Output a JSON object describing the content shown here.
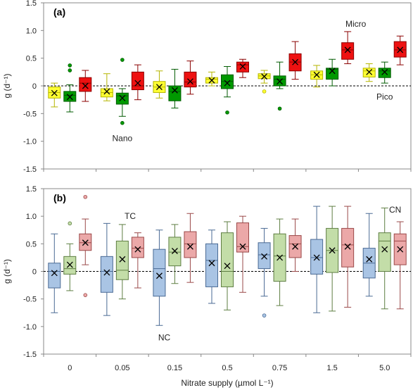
{
  "chart_data": [
    {
      "panel_label": "(a)",
      "type": "box",
      "ylabel": "g (d⁻¹)",
      "ylim": [
        -1.5,
        1.5
      ],
      "yticks": [
        "1.5",
        "1.0",
        "0.5",
        "0",
        "-0.5",
        "-1.0",
        "-1.5"
      ],
      "categories": [
        "0",
        "0.05",
        "0.15",
        "0.5",
        "0.75",
        "1.5",
        "5.0"
      ],
      "zero_line": "dashed",
      "series": [
        {
          "color": "#ffff33",
          "stroke": "#b5b500",
          "boxes": [
            {
              "min": -0.38,
              "q1": -0.22,
              "median": -0.12,
              "q3": -0.02,
              "max": 0.05,
              "mean": -0.13,
              "outliers": []
            },
            {
              "min": -0.27,
              "q1": -0.2,
              "median": -0.12,
              "q3": -0.05,
              "max": 0.22,
              "mean": -0.1,
              "outliers": []
            },
            {
              "min": -0.22,
              "q1": -0.12,
              "median": -0.02,
              "q3": 0.08,
              "max": 0.27,
              "mean": -0.02,
              "outliers": []
            },
            {
              "min": 0.0,
              "q1": 0.05,
              "median": 0.12,
              "q3": 0.15,
              "max": 0.25,
              "mean": 0.1,
              "outliers": []
            },
            {
              "min": 0.05,
              "q1": 0.13,
              "median": 0.18,
              "q3": 0.22,
              "max": 0.28,
              "mean": 0.17,
              "outliers": [
                -0.1
              ]
            },
            {
              "min": -0.02,
              "q1": 0.12,
              "median": 0.2,
              "q3": 0.27,
              "max": 0.37,
              "mean": 0.2,
              "outliers": []
            },
            {
              "min": 0.08,
              "q1": 0.16,
              "median": 0.27,
              "q3": 0.32,
              "max": 0.4,
              "mean": 0.25,
              "outliers": []
            }
          ]
        },
        {
          "color": "#009900",
          "stroke": "#005a00",
          "boxes": [
            {
              "min": -0.47,
              "q1": -0.28,
              "median": -0.17,
              "q3": -0.1,
              "max": 0.02,
              "mean": -0.2,
              "outliers": [
                0.37,
                0.28
              ]
            },
            {
              "min": -0.55,
              "q1": -0.33,
              "median": -0.18,
              "q3": -0.13,
              "max": -0.05,
              "mean": -0.22,
              "outliers": [
                0.47,
                -0.67
              ]
            },
            {
              "min": -0.4,
              "q1": -0.27,
              "median": -0.1,
              "q3": 0.0,
              "max": 0.3,
              "mean": -0.08,
              "outliers": []
            },
            {
              "min": -0.2,
              "q1": -0.05,
              "median": 0.08,
              "q3": 0.2,
              "max": 0.35,
              "mean": 0.05,
              "outliers": [
                -0.48
              ]
            },
            {
              "min": -0.05,
              "q1": 0.0,
              "median": 0.12,
              "q3": 0.18,
              "max": 0.43,
              "mean": 0.08,
              "outliers": [
                -0.41
              ]
            },
            {
              "min": 0.0,
              "q1": 0.12,
              "median": 0.3,
              "q3": 0.32,
              "max": 0.48,
              "mean": 0.27,
              "outliers": []
            },
            {
              "min": 0.05,
              "q1": 0.15,
              "median": 0.27,
              "q3": 0.32,
              "max": 0.43,
              "mean": 0.25,
              "outliers": []
            }
          ]
        },
        {
          "color": "#ee1111",
          "stroke": "#8a0000",
          "boxes": [
            {
              "min": -0.28,
              "q1": -0.1,
              "median": 0.05,
              "q3": 0.15,
              "max": 0.28,
              "mean": 0.0,
              "outliers": []
            },
            {
              "min": -0.25,
              "q1": -0.07,
              "median": 0.0,
              "q3": 0.25,
              "max": 0.38,
              "mean": 0.05,
              "outliers": []
            },
            {
              "min": -0.15,
              "q1": -0.02,
              "median": 0.07,
              "q3": 0.25,
              "max": 0.45,
              "mean": 0.08,
              "outliers": []
            },
            {
              "min": 0.15,
              "q1": 0.25,
              "median": 0.38,
              "q3": 0.43,
              "max": 0.48,
              "mean": 0.35,
              "outliers": []
            },
            {
              "min": 0.12,
              "q1": 0.27,
              "median": 0.43,
              "q3": 0.58,
              "max": 0.8,
              "mean": 0.43,
              "outliers": []
            },
            {
              "min": 0.4,
              "q1": 0.48,
              "median": 0.65,
              "q3": 0.78,
              "max": 0.98,
              "mean": 0.65,
              "outliers": []
            },
            {
              "min": 0.38,
              "q1": 0.52,
              "median": 0.65,
              "q3": 0.8,
              "max": 0.9,
              "mean": 0.65,
              "outliers": []
            }
          ]
        }
      ],
      "annotations": [
        {
          "text": "Nano",
          "x": 1,
          "y": -0.95
        },
        {
          "text": "Micro",
          "x": 5.45,
          "y": 1.12
        },
        {
          "text": "Pico",
          "x": 6.0,
          "y": -0.2
        }
      ]
    },
    {
      "panel_label": "(b)",
      "type": "box",
      "ylabel": "g (d⁻¹)",
      "ylim": [
        -1.5,
        1.5
      ],
      "yticks": [
        "1.5",
        "1.0",
        "0.5",
        "0",
        "-0.5",
        "-1.0",
        "-1.5"
      ],
      "categories": [
        "0",
        "0.05",
        "0.15",
        "0.5",
        "0.75",
        "1.5",
        "5.0"
      ],
      "xlabel": "Nitrate supply  (µmol L⁻¹)",
      "zero_line": "dashed",
      "series": [
        {
          "color": "#a9c4e4",
          "stroke": "#4a6a94",
          "boxes": [
            {
              "min": -0.75,
              "q1": -0.3,
              "median": 0.0,
              "q3": 0.15,
              "max": 0.68,
              "mean": -0.03,
              "outliers": []
            },
            {
              "min": -0.8,
              "q1": -0.38,
              "median": 0.0,
              "q3": 0.27,
              "max": 0.87,
              "mean": -0.02,
              "outliers": []
            },
            {
              "min": -0.98,
              "q1": -0.45,
              "median": 0.05,
              "q3": 0.4,
              "max": 0.75,
              "mean": -0.08,
              "outliers": []
            },
            {
              "min": -0.58,
              "q1": -0.28,
              "median": 0.2,
              "q3": 0.5,
              "max": 0.75,
              "mean": 0.15,
              "outliers": []
            },
            {
              "min": -0.45,
              "q1": 0.05,
              "median": 0.3,
              "q3": 0.52,
              "max": 0.78,
              "mean": 0.27,
              "outliers": [
                -0.8
              ]
            },
            {
              "min": -0.75,
              "q1": -0.05,
              "median": 0.25,
              "q3": 0.58,
              "max": 1.18,
              "mean": 0.25,
              "outliers": []
            },
            {
              "min": -0.45,
              "q1": -0.12,
              "median": 0.15,
              "q3": 0.42,
              "max": 1.05,
              "mean": 0.22,
              "outliers": []
            }
          ]
        },
        {
          "color": "#c3dda8",
          "stroke": "#5e7e42",
          "boxes": [
            {
              "min": -0.35,
              "q1": -0.05,
              "median": 0.05,
              "q3": 0.27,
              "max": 0.5,
              "mean": 0.12,
              "outliers": [
                0.87
              ]
            },
            {
              "min": -0.5,
              "q1": -0.15,
              "median": 0.02,
              "q3": 0.55,
              "max": 0.85,
              "mean": 0.22,
              "outliers": []
            },
            {
              "min": -0.22,
              "q1": 0.1,
              "median": 0.35,
              "q3": 0.62,
              "max": 0.85,
              "mean": 0.37,
              "outliers": []
            },
            {
              "min": -0.7,
              "q1": -0.28,
              "median": 0.0,
              "q3": 0.7,
              "max": 0.9,
              "mean": 0.1,
              "outliers": []
            },
            {
              "min": -0.62,
              "q1": -0.18,
              "median": 0.28,
              "q3": 0.68,
              "max": 0.95,
              "mean": 0.25,
              "outliers": []
            },
            {
              "min": -0.72,
              "q1": -0.02,
              "median": 0.38,
              "q3": 0.78,
              "max": 1.18,
              "mean": 0.38,
              "outliers": []
            },
            {
              "min": -0.68,
              "q1": 0.0,
              "median": 0.55,
              "q3": 0.7,
              "max": 1.15,
              "mean": 0.4,
              "outliers": []
            }
          ]
        },
        {
          "color": "#eba8a8",
          "stroke": "#9a4848",
          "boxes": [
            {
              "min": 0.12,
              "q1": 0.38,
              "median": 0.52,
              "q3": 0.68,
              "max": 0.95,
              "mean": 0.52,
              "outliers": [
                1.35,
                -0.43
              ]
            },
            {
              "min": -0.3,
              "q1": 0.25,
              "median": 0.42,
              "q3": 0.62,
              "max": 0.7,
              "mean": 0.4,
              "outliers": []
            },
            {
              "min": -0.2,
              "q1": 0.25,
              "median": 0.5,
              "q3": 0.72,
              "max": 1.05,
              "mean": 0.45,
              "outliers": []
            },
            {
              "min": -0.38,
              "q1": 0.35,
              "median": 0.45,
              "q3": 0.88,
              "max": 1.0,
              "mean": 0.45,
              "outliers": []
            },
            {
              "min": 0.0,
              "q1": 0.25,
              "median": 0.5,
              "q3": 0.65,
              "max": 0.95,
              "mean": 0.45,
              "outliers": []
            },
            {
              "min": -0.65,
              "q1": 0.08,
              "median": 0.48,
              "q3": 0.78,
              "max": 1.18,
              "mean": 0.45,
              "outliers": []
            },
            {
              "min": -0.68,
              "q1": 0.12,
              "median": 0.55,
              "q3": 0.68,
              "max": 0.9,
              "mean": 0.4,
              "outliers": []
            }
          ]
        }
      ],
      "annotations": [
        {
          "text": "TC",
          "x": 1.15,
          "y": 1.0
        },
        {
          "text": "NC",
          "x": 1.8,
          "y": -1.2
        },
        {
          "text": "CN",
          "x": 6.2,
          "y": 1.12
        }
      ]
    }
  ]
}
